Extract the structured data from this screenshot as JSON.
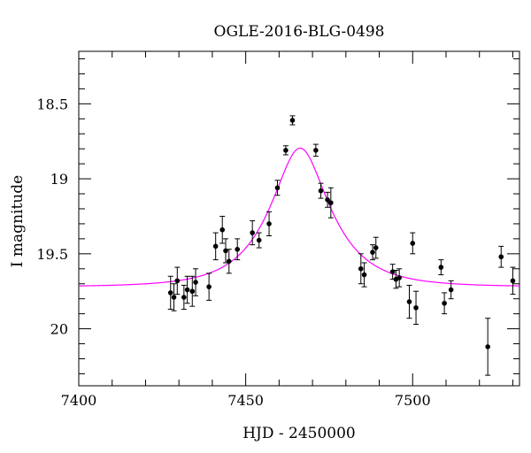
{
  "chart_data": {
    "type": "scatter",
    "title": "OGLE-2016-BLG-0498",
    "xlabel": "HJD - 2450000",
    "ylabel": "I magnitude",
    "xlim": [
      7400,
      7532
    ],
    "ylim": [
      20.38,
      18.15
    ],
    "y_inverted": true,
    "x_ticks": [
      7400,
      7450,
      7500
    ],
    "y_ticks": [
      18.5,
      19,
      19.5,
      20
    ],
    "x_tick_labels": [
      "7400",
      "7450",
      "7500"
    ],
    "y_tick_labels": [
      "18.5",
      "19",
      "19.5",
      "20"
    ],
    "x_minor_step": 10,
    "y_minor_step": 0.1,
    "grid": false,
    "colors": {
      "model": "#ff00ff",
      "points": "#000000"
    },
    "model_curve": {
      "description_free": true,
      "t0": 7466.3,
      "u0": 0.46,
      "tE": 16.0,
      "baseline_mag": 19.72
    },
    "points": [
      {
        "x": 7427.5,
        "y": 19.76,
        "err": 0.11
      },
      {
        "x": 7428.5,
        "y": 19.79,
        "err": 0.09
      },
      {
        "x": 7429.5,
        "y": 19.68,
        "err": 0.09
      },
      {
        "x": 7431.5,
        "y": 19.79,
        "err": 0.08
      },
      {
        "x": 7432.5,
        "y": 19.74,
        "err": 0.09
      },
      {
        "x": 7434.0,
        "y": 19.75,
        "err": 0.1
      },
      {
        "x": 7435.0,
        "y": 19.69,
        "err": 0.09
      },
      {
        "x": 7439.0,
        "y": 19.72,
        "err": 0.09
      },
      {
        "x": 7441.0,
        "y": 19.45,
        "err": 0.09
      },
      {
        "x": 7443.0,
        "y": 19.34,
        "err": 0.09
      },
      {
        "x": 7444.0,
        "y": 19.48,
        "err": 0.08
      },
      {
        "x": 7445.0,
        "y": 19.55,
        "err": 0.08
      },
      {
        "x": 7447.5,
        "y": 19.47,
        "err": 0.07
      },
      {
        "x": 7452.0,
        "y": 19.36,
        "err": 0.08
      },
      {
        "x": 7454.0,
        "y": 19.41,
        "err": 0.05
      },
      {
        "x": 7457.0,
        "y": 19.3,
        "err": 0.08
      },
      {
        "x": 7459.5,
        "y": 19.06,
        "err": 0.05
      },
      {
        "x": 7462.0,
        "y": 18.81,
        "err": 0.03
      },
      {
        "x": 7464.0,
        "y": 18.61,
        "err": 0.03
      },
      {
        "x": 7471.0,
        "y": 18.81,
        "err": 0.04
      },
      {
        "x": 7472.5,
        "y": 19.08,
        "err": 0.05
      },
      {
        "x": 7474.5,
        "y": 19.14,
        "err": 0.05
      },
      {
        "x": 7475.5,
        "y": 19.16,
        "err": 0.1
      },
      {
        "x": 7484.5,
        "y": 19.6,
        "err": 0.1
      },
      {
        "x": 7485.5,
        "y": 19.64,
        "err": 0.08
      },
      {
        "x": 7488.0,
        "y": 19.49,
        "err": 0.05
      },
      {
        "x": 7489.0,
        "y": 19.46,
        "err": 0.07
      },
      {
        "x": 7494.0,
        "y": 19.62,
        "err": 0.05
      },
      {
        "x": 7495.0,
        "y": 19.67,
        "err": 0.06
      },
      {
        "x": 7496.0,
        "y": 19.66,
        "err": 0.06
      },
      {
        "x": 7499.0,
        "y": 19.82,
        "err": 0.11
      },
      {
        "x": 7500.0,
        "y": 19.43,
        "err": 0.07
      },
      {
        "x": 7501.0,
        "y": 19.86,
        "err": 0.11
      },
      {
        "x": 7508.5,
        "y": 19.59,
        "err": 0.05
      },
      {
        "x": 7509.5,
        "y": 19.83,
        "err": 0.07
      },
      {
        "x": 7511.5,
        "y": 19.74,
        "err": 0.06
      },
      {
        "x": 7522.5,
        "y": 20.12,
        "err": 0.19
      },
      {
        "x": 7526.5,
        "y": 19.52,
        "err": 0.07
      },
      {
        "x": 7530.0,
        "y": 19.68,
        "err": 0.09
      }
    ]
  }
}
